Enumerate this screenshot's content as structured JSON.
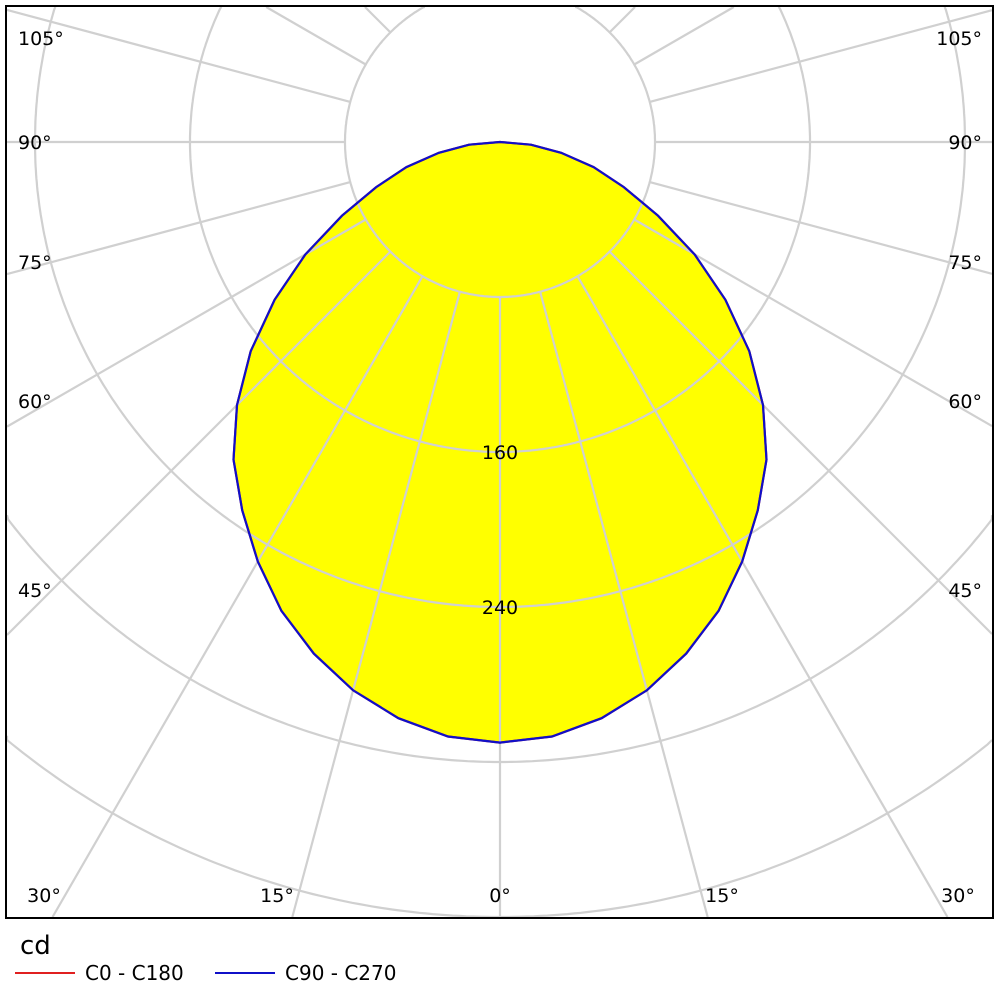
{
  "chart_data": {
    "type": "polar",
    "unit": "cd",
    "radial_ticks": [
      160,
      240
    ],
    "radial_grid_step": 80,
    "angle_ticks_left": [
      "105°",
      "90°",
      "75°",
      "60°",
      "45°"
    ],
    "angle_ticks_right": [
      "105°",
      "90°",
      "75°",
      "60°",
      "45°"
    ],
    "angle_ticks_bottom": [
      "30°",
      "15°",
      "0°",
      "15°",
      "30°"
    ],
    "grid": true,
    "legend_position": "bottom-left",
    "angles": [
      0,
      5,
      10,
      15,
      20,
      25,
      30,
      35,
      40,
      45,
      50,
      55,
      60,
      65,
      70,
      75,
      80,
      85,
      90
    ],
    "series": [
      {
        "name": "C0 - C180",
        "color": "#e02020",
        "values": [
          310,
          308,
          302,
          293,
          281,
          267,
          250,
          232,
          214,
          192,
          168,
          142,
          116,
          90,
          68,
          50,
          32,
          16,
          0
        ]
      },
      {
        "name": "C90 - C270",
        "color": "#1010c8",
        "values": [
          310,
          308,
          302,
          293,
          281,
          267,
          250,
          232,
          214,
          192,
          168,
          142,
          116,
          90,
          68,
          50,
          32,
          16,
          0
        ]
      }
    ],
    "fill_color": "#ffff00",
    "grid_color": "#d0d0d0"
  }
}
